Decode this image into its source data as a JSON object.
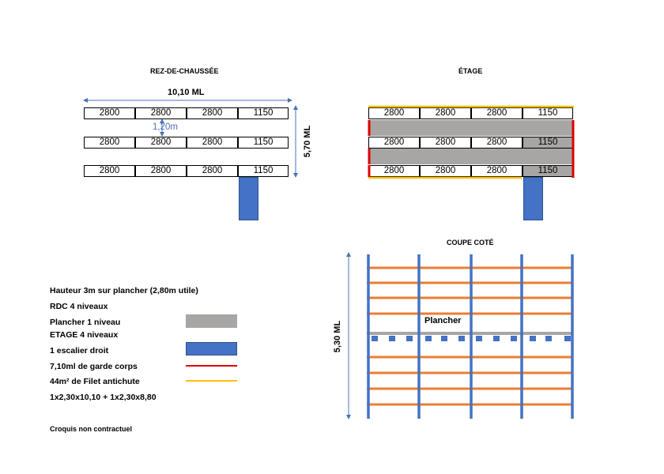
{
  "ground": {
    "title": "REZ-DE-CHAUSSÉE",
    "width_label": "10,10 ML",
    "height_label": "5,70 ML",
    "aisle_label": "1,20m",
    "rows": [
      [
        "2800",
        "2800",
        "2800",
        "1150"
      ],
      [
        "2800",
        "2800",
        "2800",
        "1150"
      ],
      [
        "2800",
        "2800",
        "2800",
        "1150"
      ]
    ]
  },
  "upper": {
    "title": "ÉTAGE",
    "rows": [
      [
        "2800",
        "2800",
        "2800",
        "1150"
      ],
      [
        "2800",
        "2800",
        "2800",
        "1150"
      ],
      [
        "2800",
        "2800",
        "2800",
        "1150"
      ]
    ]
  },
  "section": {
    "title": "COUPE COTÉ",
    "height_label": "5,30 ML",
    "floor_label": "Plancher"
  },
  "legend": {
    "lines": [
      "Hauteur 3m sur plancher (2,80m utile)",
      "RDC 4 niveaux",
      "Plancher 1 niveau",
      "ETAGE 4 niveaux",
      "1 escalier droit",
      "7,10ml de garde corps",
      "44m² de Filet antichute",
      "1x2,30x10,10 + 1x2,30x8,80"
    ],
    "note": "Croquis non contractuel"
  },
  "colors": {
    "floor_grey": "#a8a5a5",
    "stair_blue": "#4472c4",
    "guardrail_red": "#e00000",
    "net_yellow": "#ffc000",
    "beam_orange": "#ed7d31",
    "upright_blue": "#4472c4",
    "dimension_blue": "#4a72b8"
  }
}
